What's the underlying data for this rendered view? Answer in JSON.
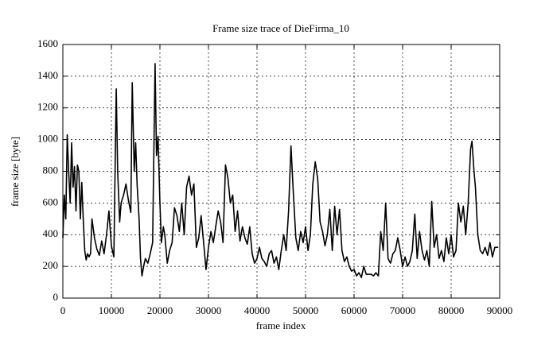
{
  "chart_data": {
    "type": "line",
    "title": "Frame size trace of DieFirma_10",
    "x_label": "frame index",
    "y_label": "frame size [byte]",
    "x": [
      0,
      300,
      600,
      900,
      1200,
      1500,
      1800,
      2100,
      2400,
      2700,
      3000,
      3300,
      3600,
      3900,
      4200,
      4500,
      4800,
      5100,
      5400,
      5700,
      6000,
      6500,
      7000,
      7500,
      8000,
      8500,
      9000,
      9500,
      10000,
      10500,
      11000,
      11300,
      11700,
      12000,
      12500,
      13000,
      13500,
      14000,
      14300,
      14700,
      15000,
      15300,
      15700,
      16000,
      16300,
      16700,
      17000,
      17500,
      18000,
      18500,
      19000,
      19300,
      19600,
      20000,
      20300,
      20700,
      21000,
      21500,
      22000,
      22500,
      23000,
      23500,
      24000,
      24500,
      25000,
      25500,
      26000,
      26500,
      27000,
      27500,
      28000,
      28500,
      29000,
      29500,
      30000,
      30500,
      31000,
      31500,
      32000,
      32500,
      33000,
      33500,
      34000,
      34500,
      35000,
      35500,
      36000,
      36500,
      37000,
      37500,
      38000,
      38500,
      39000,
      39500,
      40000,
      40500,
      41000,
      41500,
      42000,
      42500,
      43000,
      43500,
      44000,
      44500,
      45000,
      45500,
      46000,
      46500,
      47000,
      47500,
      48000,
      48500,
      49000,
      49500,
      50000,
      50500,
      51000,
      51500,
      52000,
      52500,
      53000,
      53500,
      54000,
      54500,
      55000,
      55500,
      56000,
      56500,
      57000,
      57500,
      58000,
      58500,
      59000,
      59500,
      60000,
      60500,
      61000,
      61500,
      62000,
      62500,
      63000,
      63500,
      64000,
      64500,
      65000,
      65500,
      66000,
      66500,
      67000,
      67500,
      68000,
      68500,
      69000,
      69500,
      70000,
      70500,
      71000,
      71500,
      72000,
      72500,
      73000,
      73500,
      74000,
      74500,
      75000,
      75500,
      76000,
      76500,
      77000,
      77500,
      78000,
      78500,
      79000,
      79500,
      80000,
      80500,
      81000,
      81500,
      82000,
      82500,
      83000,
      83500,
      84000,
      84300,
      84700,
      85000,
      85500,
      86000,
      86500,
      87000,
      87500,
      88000,
      88500,
      89000,
      89700
    ],
    "series": [
      {
        "color": "#000000",
        "values": [
          380,
          650,
          500,
          1030,
          800,
          600,
          980,
          700,
          830,
          550,
          840,
          800,
          500,
          730,
          500,
          300,
          240,
          280,
          260,
          280,
          500,
          380,
          310,
          270,
          360,
          280,
          400,
          550,
          330,
          260,
          1320,
          800,
          480,
          600,
          650,
          720,
          620,
          540,
          1360,
          800,
          980,
          720,
          500,
          250,
          140,
          210,
          250,
          220,
          280,
          350,
          1480,
          900,
          1020,
          600,
          350,
          450,
          400,
          220,
          300,
          350,
          570,
          520,
          420,
          600,
          400,
          700,
          770,
          650,
          720,
          320,
          380,
          520,
          350,
          180,
          320,
          420,
          350,
          450,
          550,
          480,
          350,
          840,
          760,
          600,
          650,
          420,
          550,
          360,
          450,
          380,
          340,
          450,
          280,
          220,
          250,
          320,
          250,
          230,
          200,
          280,
          300,
          220,
          260,
          180,
          300,
          400,
          300,
          550,
          960,
          650,
          380,
          300,
          420,
          350,
          450,
          300,
          400,
          720,
          860,
          750,
          480,
          420,
          330,
          400,
          560,
          300,
          580,
          400,
          560,
          300,
          230,
          260,
          200,
          170,
          180,
          140,
          160,
          130,
          200,
          150,
          150,
          150,
          140,
          160,
          140,
          420,
          300,
          600,
          250,
          220,
          280,
          300,
          380,
          300,
          200,
          260,
          200,
          230,
          300,
          530,
          250,
          420,
          300,
          240,
          300,
          200,
          610,
          320,
          400,
          250,
          300,
          230,
          380,
          280,
          400,
          260,
          300,
          600,
          480,
          580,
          400,
          600,
          940,
          990,
          800,
          700,
          400,
          300,
          280,
          320,
          270,
          350,
          260,
          320,
          320
        ]
      }
    ],
    "xlim": [
      0,
      90000
    ],
    "ylim": [
      0,
      1600
    ],
    "xticks": [
      0,
      10000,
      20000,
      30000,
      40000,
      50000,
      60000,
      70000,
      80000,
      90000
    ],
    "yticks": [
      0,
      200,
      400,
      600,
      800,
      1000,
      1200,
      1400,
      1600
    ],
    "grid": true
  }
}
